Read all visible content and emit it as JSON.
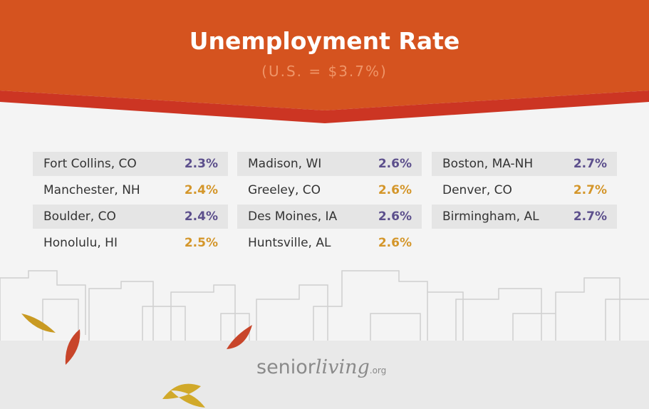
{
  "header": {
    "title": "Unemployment Rate",
    "subtitle": "(U.S. = $3.7%)"
  },
  "table": {
    "columns": [
      [
        {
          "city": "Fort Collins, CO",
          "rate": "2.3%"
        },
        {
          "city": "Manchester, NH",
          "rate": "2.4%"
        },
        {
          "city": "Boulder, CO",
          "rate": "2.4%"
        },
        {
          "city": "Honolulu, HI",
          "rate": "2.5%"
        }
      ],
      [
        {
          "city": "Madison, WI",
          "rate": "2.6%"
        },
        {
          "city": "Greeley, CO",
          "rate": "2.6%"
        },
        {
          "city": "Des Moines, IA",
          "rate": "2.6%"
        },
        {
          "city": "Huntsville, AL",
          "rate": "2.6%"
        }
      ],
      [
        {
          "city": "Boston, MA-NH",
          "rate": "2.7%"
        },
        {
          "city": "Denver, CO",
          "rate": "2.7%"
        },
        {
          "city": "Birmingham, AL",
          "rate": "2.7%"
        }
      ]
    ]
  },
  "logo": {
    "brand": "senior",
    "script": "living",
    "suffix": ".org"
  }
}
